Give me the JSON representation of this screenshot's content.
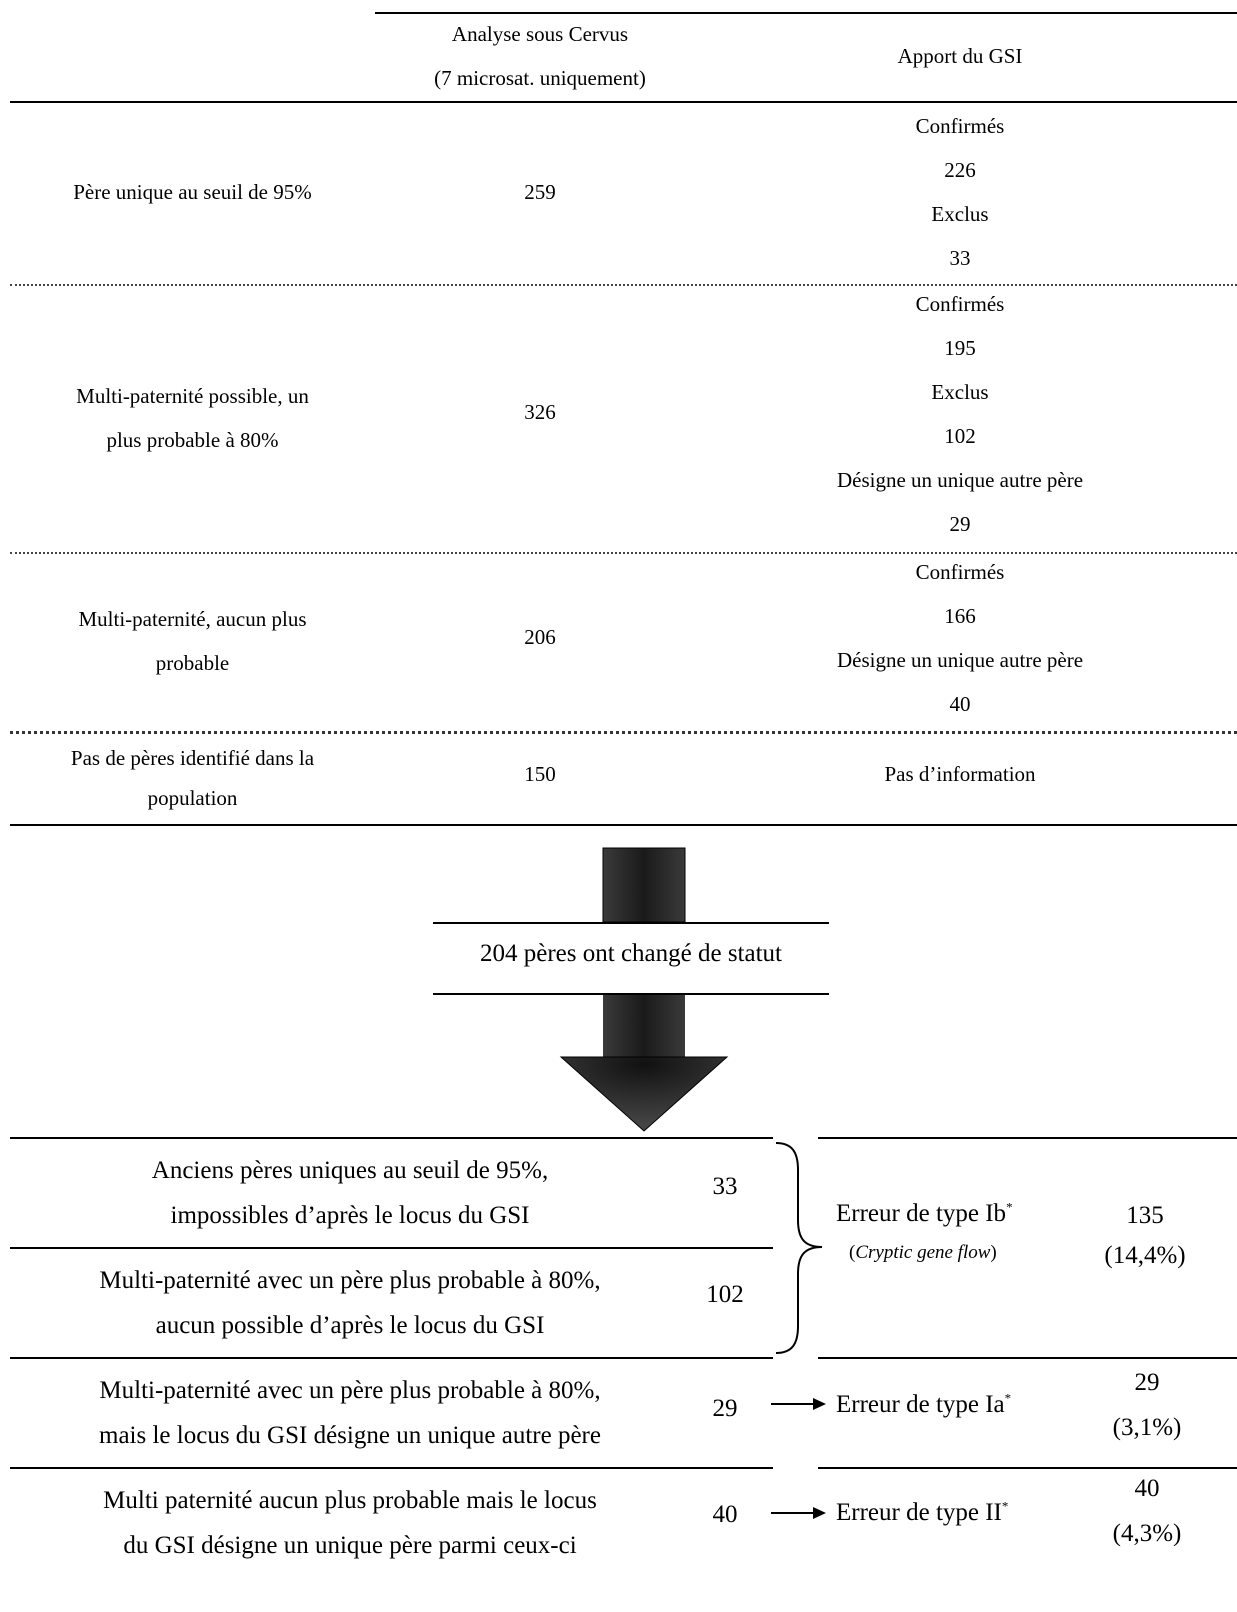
{
  "top_table": {
    "header": {
      "col2_line1": "Analyse sous Cervus",
      "col2_line2": "(7 microsat. uniquement)",
      "col3": "Apport du GSI"
    },
    "rows": [
      {
        "label_lines": [
          "Père unique au seuil de 95%"
        ],
        "value": "259",
        "gsi": [
          "Confirmés",
          "226",
          "Exclus",
          "33"
        ]
      },
      {
        "label_lines": [
          "Multi-paternité possible, un",
          "plus probable à 80%"
        ],
        "value": "326",
        "gsi": [
          "Confirmés",
          "195",
          "Exclus",
          "102",
          "Désigne un unique autre père",
          "29"
        ]
      },
      {
        "label_lines": [
          "Multi-paternité, aucun plus",
          "probable"
        ],
        "value": "206",
        "gsi": [
          "Confirmés",
          "166",
          "Désigne un unique autre père",
          "40"
        ]
      },
      {
        "label_lines": [
          "Pas de pères identifié dans la",
          "population"
        ],
        "value": "150",
        "gsi": [
          "Pas d’information"
        ]
      }
    ]
  },
  "arrow": {
    "label": "204 pères ont changé de statut",
    "color": "#3a3a3a"
  },
  "bottom_table": {
    "rows": [
      {
        "line1": "Anciens pères uniques au seuil de 95%,",
        "line2": "impossibles d’après le locus du GSI",
        "value": "33"
      },
      {
        "line1": "Multi-paternité avec un père plus probable à 80%,",
        "line2": "aucun possible d’après le locus du GSI",
        "value": "102"
      },
      {
        "line1": "Multi-paternité avec un père plus probable à 80%,",
        "line2": "mais le locus du GSI désigne un unique autre père",
        "value": "29"
      },
      {
        "line1": "Multi paternité aucun plus probable mais le locus",
        "line2": "du GSI désigne un unique père parmi ceux-ci",
        "value": "40"
      }
    ],
    "errors": [
      {
        "label": "Erreur de type Ib",
        "sup": "*",
        "sub": "Cryptic gene flow",
        "count": "135",
        "pct": "(14,4%)"
      },
      {
        "label": "Erreur de type Ia",
        "sup": "*",
        "count": "29",
        "pct": "(3,1%)"
      },
      {
        "label": "Erreur de type II",
        "sup": "*",
        "count": "40",
        "pct": "(4,3%)"
      }
    ]
  }
}
